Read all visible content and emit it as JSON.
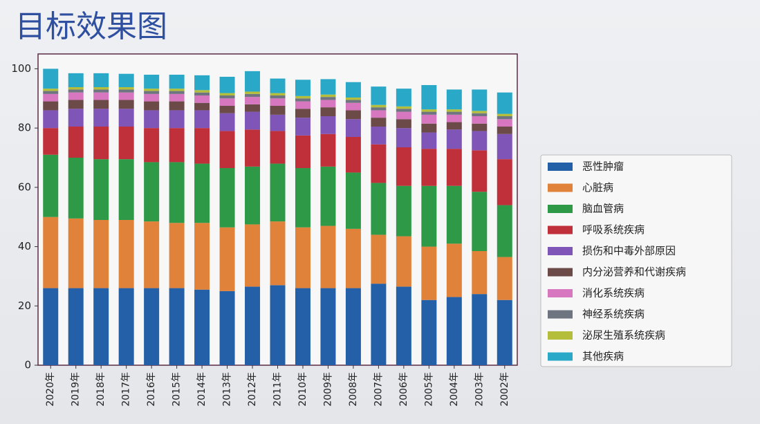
{
  "page_title": "目标效果图",
  "chart_data": {
    "type": "stacked_bar",
    "categories": [
      "2020年",
      "2019年",
      "2018年",
      "2017年",
      "2016年",
      "2015年",
      "2014年",
      "2013年",
      "2012年",
      "2011年",
      "2010年",
      "2009年",
      "2008年",
      "2007年",
      "2006年",
      "2005年",
      "2004年",
      "2003年",
      "2002年"
    ],
    "series": [
      {
        "name": "恶性肿瘤",
        "color": "#2460a8",
        "values": [
          26,
          26,
          26,
          26,
          26,
          26,
          25.5,
          25,
          26.5,
          27,
          26,
          26,
          26,
          27.5,
          26.5,
          22,
          23,
          24,
          22
        ]
      },
      {
        "name": "心脏病",
        "color": "#e0823a",
        "values": [
          24,
          23.5,
          23,
          23,
          22.5,
          22,
          22.5,
          21.5,
          21,
          21.5,
          20.5,
          21,
          20,
          16.5,
          17,
          18,
          18,
          14.5,
          14.5
        ]
      },
      {
        "name": "脑血管病",
        "color": "#2e9a48",
        "values": [
          21,
          20.5,
          20.5,
          20.5,
          20,
          20.5,
          20,
          20,
          19.5,
          19.5,
          20,
          20,
          19,
          17.5,
          17,
          20.5,
          19.5,
          20,
          17.5
        ]
      },
      {
        "name": "呼吸系统疾病",
        "color": "#c0303a",
        "values": [
          9,
          10.5,
          11,
          11,
          11.5,
          11.5,
          12,
          12.5,
          12.5,
          11,
          11,
          11,
          12,
          13,
          13,
          12.5,
          12.5,
          14,
          15.5
        ]
      },
      {
        "name": "损伤和中毒外部原因",
        "color": "#7f55b8",
        "values": [
          6,
          6,
          6,
          6,
          6,
          6,
          6,
          6,
          6,
          5.5,
          6,
          6,
          6,
          6,
          6.5,
          5.5,
          6.5,
          6.5,
          8.5
        ]
      },
      {
        "name": "内分泌营养和代谢疾病",
        "color": "#6b4a48",
        "values": [
          3,
          3,
          3,
          3,
          3,
          3,
          2.5,
          2.5,
          2.5,
          3,
          3,
          3,
          3,
          3,
          3,
          3,
          2.5,
          2.5,
          2.5
        ]
      },
      {
        "name": "消化系统疾病",
        "color": "#d677c0",
        "values": [
          2.5,
          2.5,
          2.5,
          2.5,
          2.5,
          2.5,
          2.5,
          2.5,
          2.5,
          2.5,
          2.5,
          2.5,
          2.5,
          2.5,
          2.5,
          3,
          2.5,
          2.5,
          2.5
        ]
      },
      {
        "name": "神经系统疾病",
        "color": "#6e7480",
        "values": [
          1,
          1,
          1,
          1,
          1,
          1,
          1,
          1,
          1,
          1,
          1,
          1,
          1,
          1,
          1,
          1,
          1,
          1,
          1
        ]
      },
      {
        "name": "泌尿生殖系统疾病",
        "color": "#b4be3a",
        "values": [
          0.8,
          0.8,
          0.8,
          0.8,
          0.8,
          0.8,
          0.8,
          0.8,
          0.8,
          0.8,
          0.8,
          0.8,
          0.8,
          0.8,
          0.8,
          0.8,
          0.8,
          0.8,
          0.8
        ]
      },
      {
        "name": "其他疾病",
        "color": "#2aa8c8",
        "values": [
          6.7,
          4.7,
          4.7,
          4.5,
          4.7,
          4.7,
          5.0,
          5.5,
          6.9,
          4.9,
          5.5,
          5.2,
          5.2,
          6.2,
          6.0,
          8.2,
          6.7,
          7.2,
          7.2
        ]
      }
    ],
    "ylim": [
      0,
      105
    ],
    "yticks": [
      0,
      20,
      40,
      60,
      80,
      100
    ],
    "legend": "right"
  }
}
